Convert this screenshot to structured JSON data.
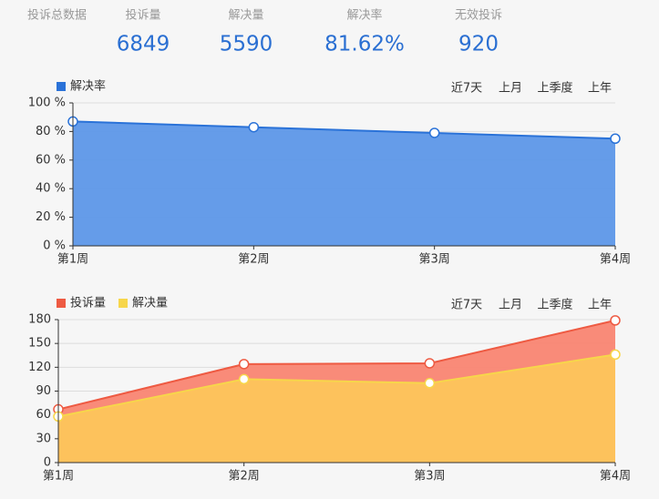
{
  "header": {
    "title": "投诉总数据",
    "stats": [
      {
        "label": "投诉量",
        "value": 6849
      },
      {
        "label": "解决量",
        "value": 5590
      },
      {
        "label": "解决率",
        "value": 81.62,
        "value_label": "81.62%"
      },
      {
        "label": "无效投诉",
        "value": 920
      }
    ]
  },
  "chart_data": [
    {
      "type": "area",
      "tabs": [
        "近7天",
        "上月",
        "上季度",
        "上年"
      ],
      "active_tab": 1,
      "categories": [
        "第1周",
        "第2周",
        "第3周",
        "第4周"
      ],
      "series": [
        {
          "name": "解决率",
          "color": "#2a72d8",
          "fill": "#5d97e8",
          "values": [
            87,
            83,
            79,
            75
          ]
        }
      ],
      "ylim": [
        0,
        100
      ],
      "yticks": [
        {
          "value": 0,
          "label": "0 %"
        },
        {
          "value": 20,
          "label": "20 %"
        },
        {
          "value": 40,
          "label": "40 %"
        },
        {
          "value": 60,
          "label": "60 %"
        },
        {
          "value": 80,
          "label": "80 %"
        },
        {
          "value": 100,
          "label": "100 %"
        }
      ],
      "grid": true
    },
    {
      "type": "area",
      "tabs": [
        "近7天",
        "上月",
        "上季度",
        "上年"
      ],
      "active_tab": 1,
      "categories": [
        "第1周",
        "第2周",
        "第3周",
        "第4周"
      ],
      "series": [
        {
          "name": "投诉量",
          "color": "#ee5a42",
          "fill": "#f98572",
          "values": [
            67,
            124,
            125,
            179
          ]
        },
        {
          "name": "解决量",
          "color": "#f7d64a",
          "fill": "#fdc55b",
          "values": [
            58,
            105,
            100,
            136
          ]
        }
      ],
      "ylim": [
        0,
        180
      ],
      "yticks": [
        0,
        30,
        60,
        90,
        120,
        150,
        180
      ],
      "grid": true
    }
  ]
}
